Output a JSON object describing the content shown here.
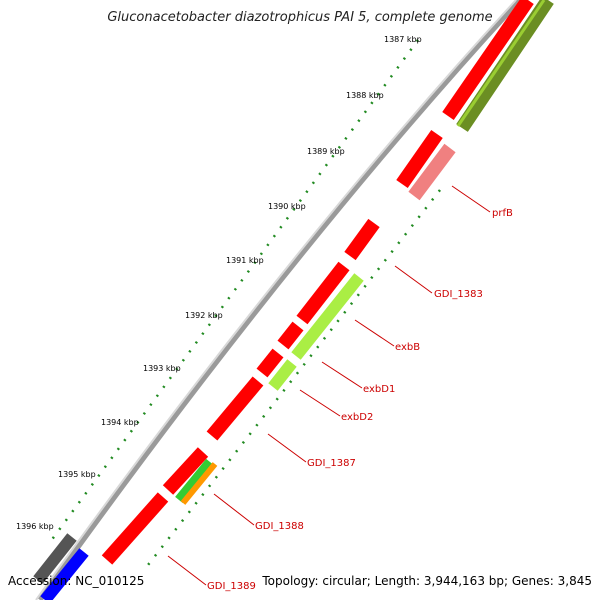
{
  "title": "Gluconacetobacter diazotrophicus PAI 5, complete genome",
  "accession_text": "Accession: NC_010125",
  "topology_text": "Topology: circular; Length: 3,944,163 bp; Genes: 3,845",
  "kbp_ticks": [
    "1387 kbp",
    "1388 kbp",
    "1389 kbp",
    "1390 kbp",
    "1391 kbp",
    "1392 kbp",
    "1393 kbp",
    "1394 kbp",
    "1395 kbp",
    "1396 kbp"
  ],
  "gene_labels": [
    "prfB",
    "GDI_1383",
    "exbB",
    "exbD1",
    "exbD2",
    "GDI_1387",
    "GDI_1388",
    "GDI_1389"
  ],
  "colors": {
    "backbone": "#888888",
    "gene": "#ff0000",
    "pseudo": "#f08080",
    "lime": "#aaee44",
    "green": "#33cc33",
    "orange": "#ff9900",
    "olive": "#6b8e23",
    "gray": "#555555",
    "blue": "#0000ff",
    "tick": "#228b22",
    "label": "#cc0000"
  }
}
